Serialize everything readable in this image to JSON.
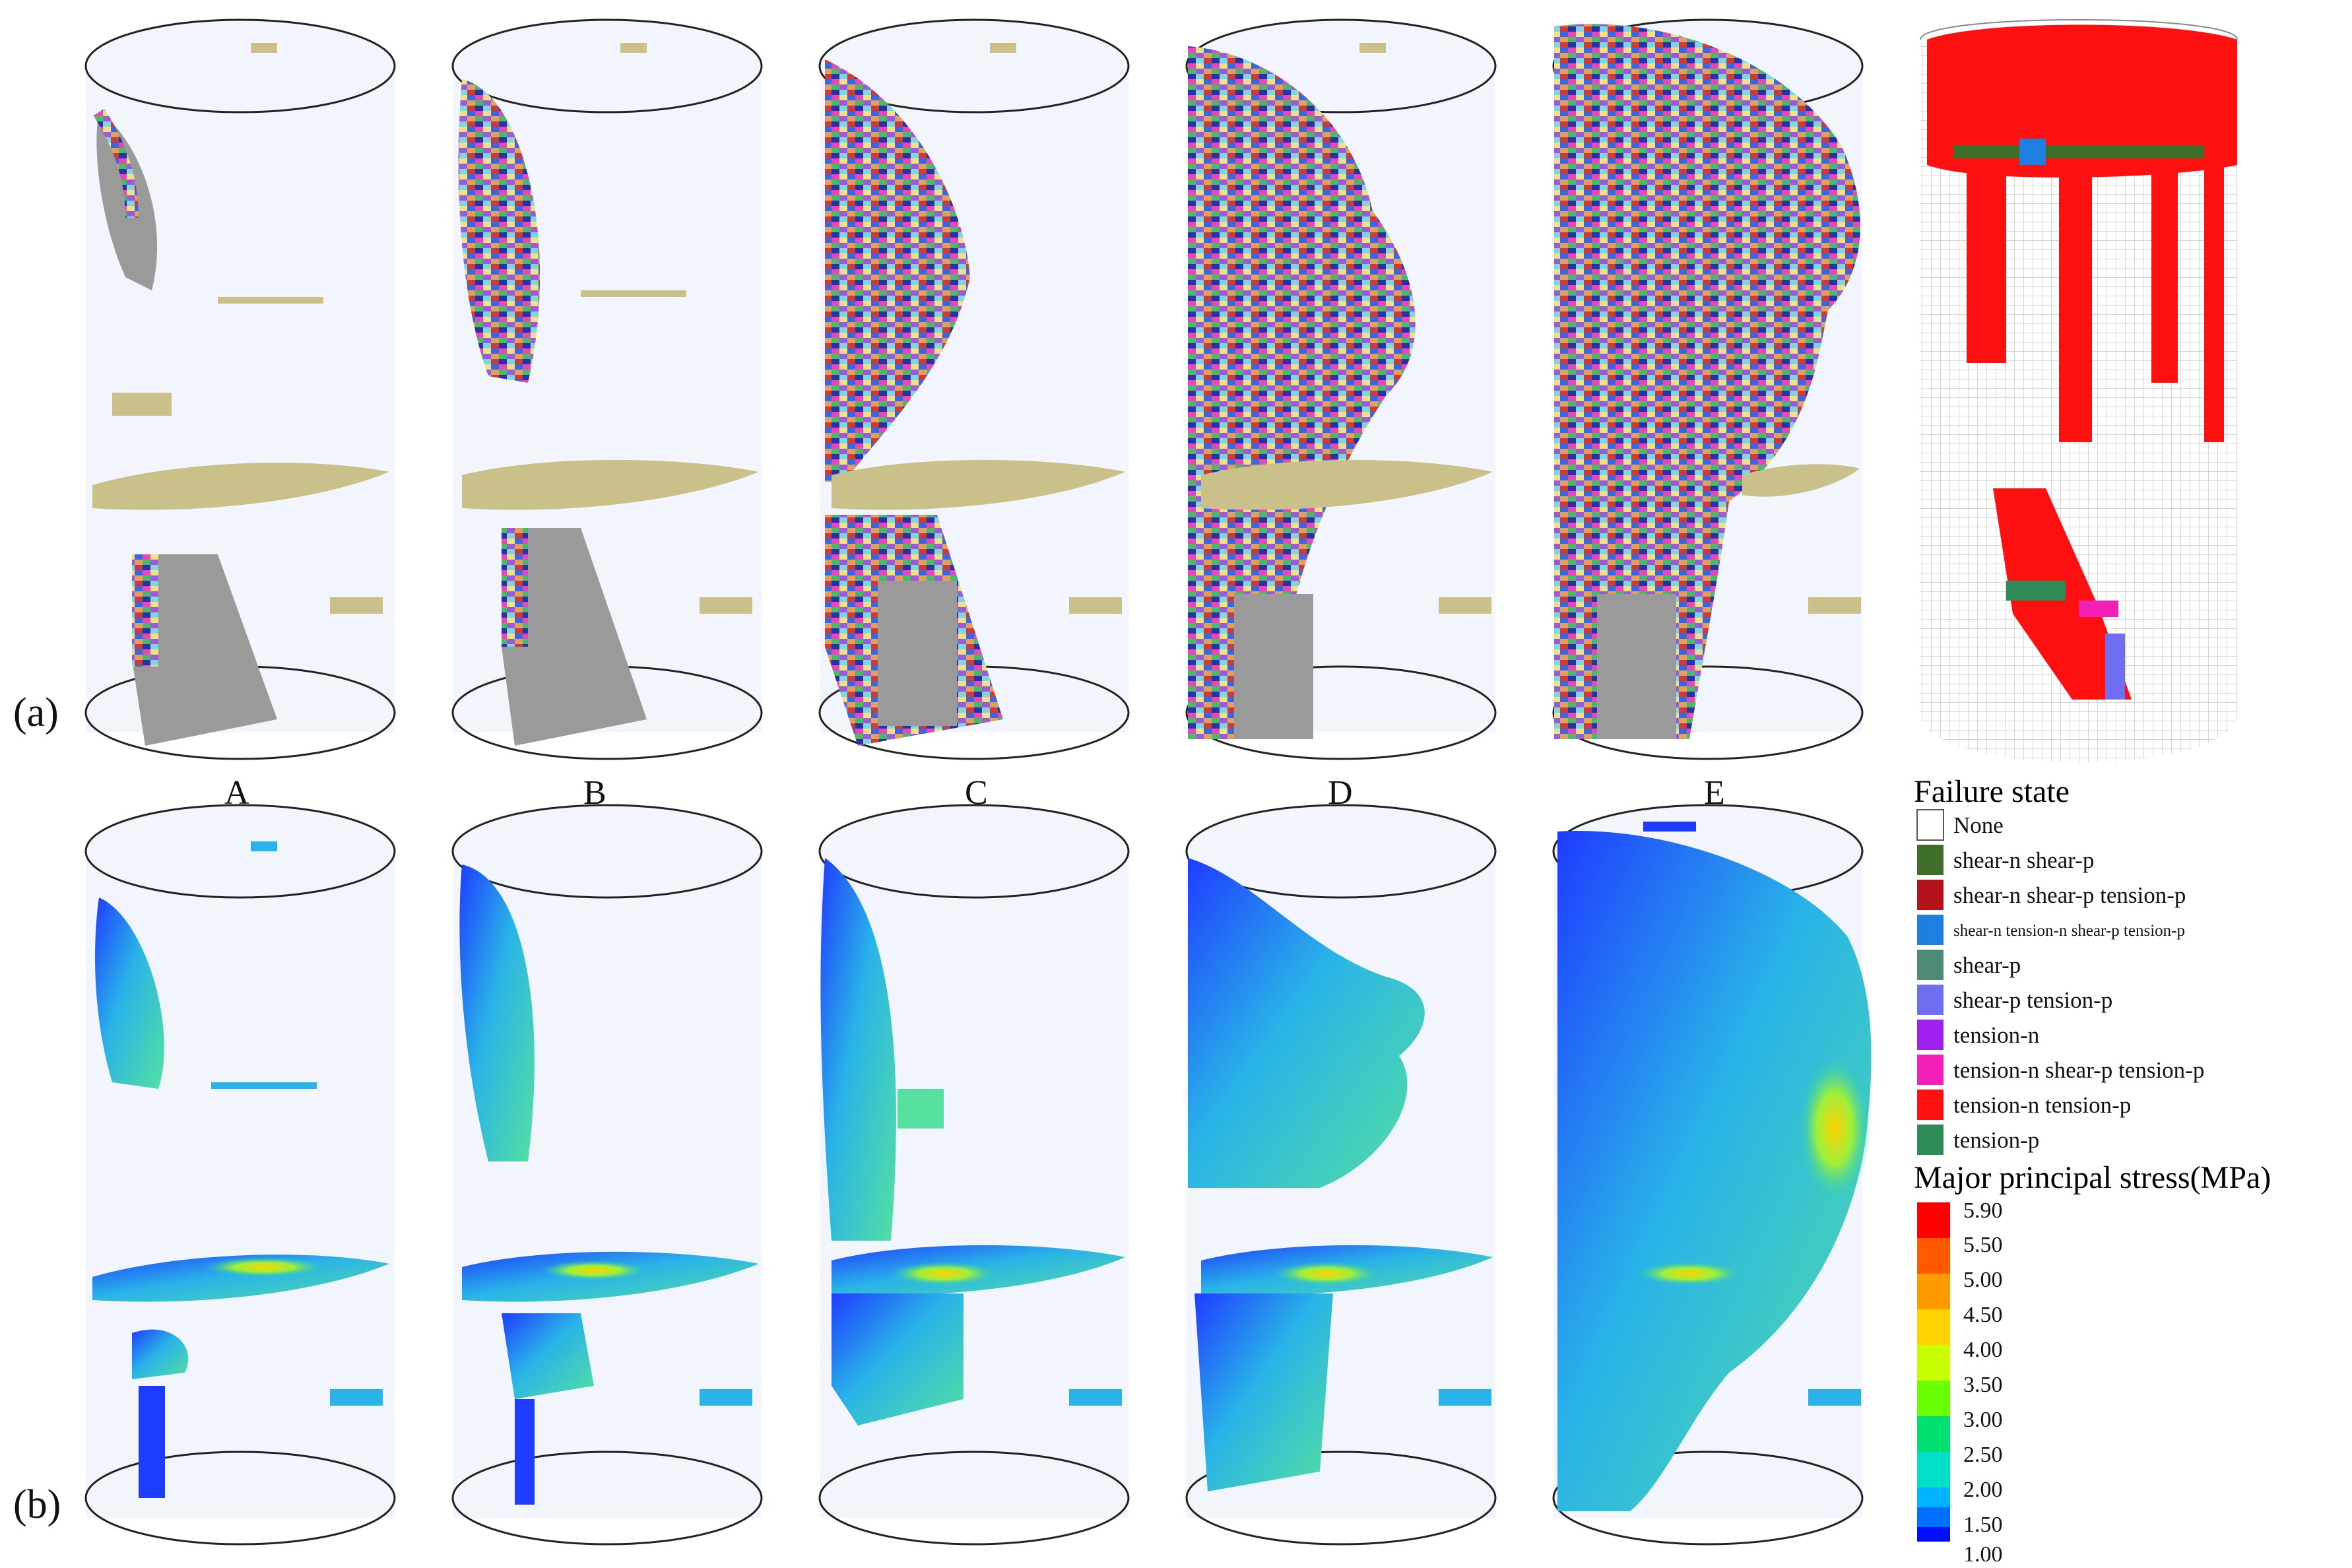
{
  "figure": {
    "row_labels": [
      "(a)",
      "(b)"
    ],
    "column_labels": [
      "A",
      "B",
      "C",
      "D",
      "E"
    ]
  },
  "failure_legend": {
    "title": "Failure state",
    "items": [
      {
        "label": "None",
        "color": "#ffffff"
      },
      {
        "label": "shear-n shear-p",
        "color": "#3f6e2a"
      },
      {
        "label": "shear-n shear-p tension-p",
        "color": "#b5121b"
      },
      {
        "label": "shear-n tension-n shear-p tension-p",
        "color": "#1e7fe0"
      },
      {
        "label": "shear-p",
        "color": "#4f8a78"
      },
      {
        "label": "shear-p tension-p",
        "color": "#6f6ef0"
      },
      {
        "label": "tension-n",
        "color": "#a020f0"
      },
      {
        "label": "tension-n shear-p tension-p",
        "color": "#f21fb8"
      },
      {
        "label": "tension-n tension-p",
        "color": "#ff1010"
      },
      {
        "label": "tension-p",
        "color": "#2e8b57"
      }
    ]
  },
  "stress_legend": {
    "title": "Major principal stress(MPa)",
    "ticks": [
      "5.90",
      "5.50",
      "5.00",
      "4.50",
      "4.00",
      "3.50",
      "3.00",
      "2.50",
      "2.00",
      "1.50",
      "1.00"
    ],
    "colors": [
      "#ff0000",
      "#ff5a00",
      "#ff9a00",
      "#ffd200",
      "#c8ff00",
      "#6aff00",
      "#00e070",
      "#00e0c8",
      "#00b4ff",
      "#0070ff",
      "#0010ff"
    ]
  },
  "colors": {
    "cylinder_fill": "#f2f6fc",
    "cylinder_outline": "#222222",
    "crack_beige": "#c9c08a",
    "rock_gray": "#9a9a9a"
  }
}
